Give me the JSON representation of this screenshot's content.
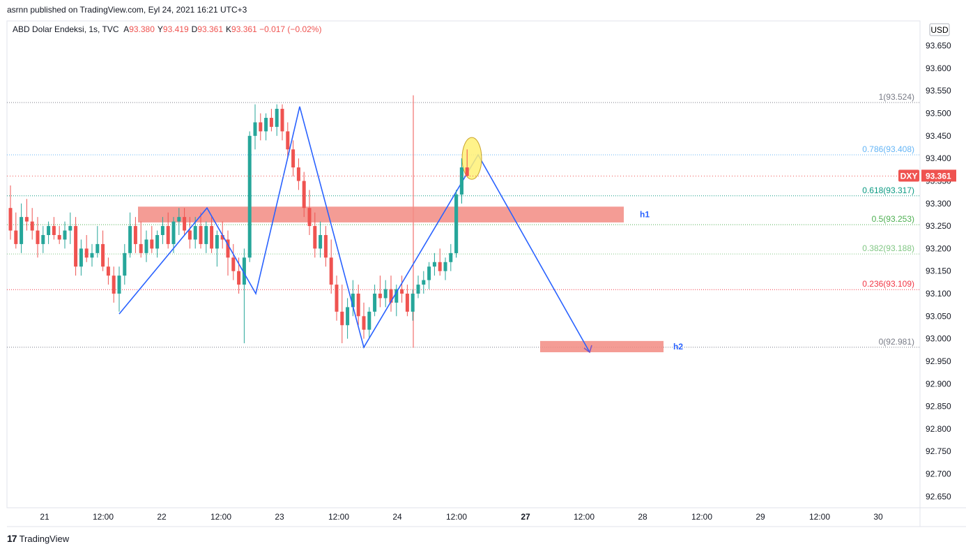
{
  "header": {
    "published": "asrnn published on TradingView.com, Eyl 24, 2021 16:21 UTC+3"
  },
  "legend": {
    "symbol_line": "ABD Dolar Endeksi, 1s, TVC",
    "o_label": "A",
    "o_value": "93.380",
    "h_label": "Y",
    "h_value": "93.419",
    "l_label": "D",
    "l_value": "93.361",
    "c_label": "K",
    "c_value": "93.361",
    "change": "−0.017 (−0.02%)"
  },
  "currency_button": "USD",
  "price_tag": {
    "symbol": "DXY",
    "value": "93.361"
  },
  "footer": {
    "logo": "17",
    "brand": "TradingView"
  },
  "colors": {
    "up": "#26a69a",
    "down": "#ef5350",
    "pattern": "#2962ff",
    "zone": "#f28b82",
    "highlight": "#fff176",
    "grid_text": "#131722"
  },
  "chart_data": {
    "type": "candlestick",
    "ylim": [
      92.625,
      93.705
    ],
    "y_ticks": [
      "93.650",
      "93.600",
      "93.550",
      "93.500",
      "93.450",
      "93.400",
      "93.350",
      "93.300",
      "93.250",
      "93.200",
      "93.150",
      "93.100",
      "93.050",
      "93.000",
      "92.950",
      "92.900",
      "92.850",
      "92.800",
      "92.750",
      "92.700",
      "92.650"
    ],
    "x_ticks": [
      "21",
      "12:00",
      "22",
      "12:00",
      "23",
      "12:00",
      "24",
      "12:00",
      "27",
      "12:00",
      "28",
      "12:00",
      "29",
      "12:00",
      "30"
    ],
    "x_tick_bold": [
      "27"
    ],
    "candles": [
      [
        93.29,
        93.34,
        93.22,
        93.24
      ],
      [
        93.24,
        93.28,
        93.2,
        93.21
      ],
      [
        93.21,
        93.3,
        93.19,
        93.27
      ],
      [
        93.27,
        93.31,
        93.24,
        93.26
      ],
      [
        93.26,
        93.29,
        93.22,
        93.24
      ],
      [
        93.24,
        93.27,
        93.18,
        93.21
      ],
      [
        93.21,
        93.25,
        93.19,
        93.23
      ],
      [
        93.23,
        93.26,
        93.21,
        93.25
      ],
      [
        93.25,
        93.27,
        93.22,
        93.23
      ],
      [
        93.23,
        93.25,
        93.21,
        93.22
      ],
      [
        93.22,
        93.26,
        93.2,
        93.24
      ],
      [
        93.24,
        93.28,
        93.21,
        93.25
      ],
      [
        93.25,
        93.27,
        93.14,
        93.16
      ],
      [
        93.16,
        93.22,
        93.14,
        93.2
      ],
      [
        93.2,
        93.23,
        93.17,
        93.18
      ],
      [
        93.18,
        93.21,
        93.16,
        93.19
      ],
      [
        93.19,
        93.25,
        93.18,
        93.21
      ],
      [
        93.21,
        93.24,
        93.15,
        93.16
      ],
      [
        93.16,
        93.18,
        93.12,
        93.14
      ],
      [
        93.14,
        93.16,
        93.08,
        93.1
      ],
      [
        93.1,
        93.16,
        93.06,
        93.14
      ],
      [
        93.14,
        93.21,
        93.12,
        93.19
      ],
      [
        93.19,
        93.28,
        93.18,
        93.25
      ],
      [
        93.25,
        93.27,
        93.19,
        93.21
      ],
      [
        93.21,
        93.26,
        93.18,
        93.19
      ],
      [
        93.19,
        93.24,
        93.17,
        93.22
      ],
      [
        93.22,
        93.25,
        93.19,
        93.2
      ],
      [
        93.2,
        93.24,
        93.18,
        93.23
      ],
      [
        93.23,
        93.27,
        93.21,
        93.25
      ],
      [
        93.25,
        93.28,
        93.2,
        93.21
      ],
      [
        93.21,
        93.27,
        93.19,
        93.26
      ],
      [
        93.26,
        93.29,
        93.23,
        93.27
      ],
      [
        93.27,
        93.29,
        93.23,
        93.24
      ],
      [
        93.24,
        93.27,
        93.2,
        93.22
      ],
      [
        93.22,
        93.27,
        93.2,
        93.25
      ],
      [
        93.25,
        93.28,
        93.2,
        93.21
      ],
      [
        93.21,
        93.26,
        93.19,
        93.25
      ],
      [
        93.25,
        93.27,
        93.19,
        93.2
      ],
      [
        93.2,
        93.24,
        93.16,
        93.23
      ],
      [
        93.23,
        93.26,
        93.2,
        93.22
      ],
      [
        93.22,
        93.24,
        93.14,
        93.18
      ],
      [
        93.18,
        93.21,
        93.13,
        93.15
      ],
      [
        93.15,
        93.18,
        93.1,
        93.12
      ],
      [
        93.12,
        93.2,
        92.99,
        93.18
      ],
      [
        93.18,
        93.46,
        93.17,
        93.45
      ],
      [
        93.45,
        93.52,
        93.42,
        93.48
      ],
      [
        93.48,
        93.5,
        93.44,
        93.46
      ],
      [
        93.46,
        93.5,
        93.44,
        93.49
      ],
      [
        93.49,
        93.51,
        93.46,
        93.47
      ],
      [
        93.47,
        93.52,
        93.45,
        93.51
      ],
      [
        93.51,
        93.52,
        93.44,
        93.46
      ],
      [
        93.46,
        93.48,
        93.4,
        93.42
      ],
      [
        93.42,
        93.44,
        93.36,
        93.38
      ],
      [
        93.38,
        93.4,
        93.33,
        93.35
      ],
      [
        93.35,
        93.37,
        93.27,
        93.29
      ],
      [
        93.29,
        93.33,
        93.23,
        93.25
      ],
      [
        93.25,
        93.28,
        93.18,
        93.2
      ],
      [
        93.2,
        93.26,
        93.18,
        93.23
      ],
      [
        93.23,
        93.25,
        93.16,
        93.18
      ],
      [
        93.18,
        93.22,
        93.1,
        93.12
      ],
      [
        93.12,
        93.14,
        93.04,
        93.06
      ],
      [
        93.06,
        93.12,
        92.99,
        93.03
      ],
      [
        93.03,
        93.09,
        93.0,
        93.07
      ],
      [
        93.07,
        93.13,
        93.05,
        93.1
      ],
      [
        93.1,
        93.12,
        93.03,
        93.05
      ],
      [
        93.05,
        93.08,
        93.0,
        93.02
      ],
      [
        93.02,
        93.07,
        93.0,
        93.06
      ],
      [
        93.06,
        93.12,
        93.05,
        93.1
      ],
      [
        93.1,
        93.14,
        93.07,
        93.09
      ],
      [
        93.09,
        93.13,
        93.07,
        93.11
      ],
      [
        93.11,
        93.14,
        93.06,
        93.08
      ],
      [
        93.08,
        93.12,
        93.05,
        93.11
      ],
      [
        93.11,
        93.14,
        93.08,
        93.1
      ],
      [
        93.1,
        93.12,
        93.05,
        93.06
      ],
      [
        93.06,
        93.11,
        93.04,
        93.1
      ],
      [
        93.1,
        93.14,
        93.09,
        93.12
      ],
      [
        93.12,
        93.15,
        93.1,
        93.13
      ],
      [
        93.13,
        93.17,
        93.11,
        93.16
      ],
      [
        93.16,
        93.19,
        93.14,
        93.17
      ],
      [
        93.17,
        93.2,
        93.14,
        93.15
      ],
      [
        93.15,
        93.18,
        93.13,
        93.17
      ],
      [
        93.17,
        93.21,
        93.15,
        93.19
      ],
      [
        93.19,
        93.33,
        93.18,
        93.32
      ],
      [
        93.32,
        93.4,
        93.3,
        93.38
      ],
      [
        93.38,
        93.42,
        93.36,
        93.361
      ]
    ],
    "fib_levels": [
      {
        "label": "1(93.524)",
        "value": 93.524,
        "color": "#787b86"
      },
      {
        "label": "0.786(93.408)",
        "value": 93.408,
        "color": "#64b5f6"
      },
      {
        "label": "0.618(93.317)",
        "value": 93.317,
        "color": "#089981"
      },
      {
        "label": "0.5(93.253)",
        "value": 93.253,
        "color": "#4caf50"
      },
      {
        "label": "0.382(93.188)",
        "value": 93.188,
        "color": "#81c784"
      },
      {
        "label": "0.236(93.109)",
        "value": 93.109,
        "color": "#f23645"
      },
      {
        "label": "0(92.981)",
        "value": 92.981,
        "color": "#787b86"
      }
    ],
    "zones": [
      {
        "label": "h1",
        "top": 93.293,
        "bottom": 93.258
      },
      {
        "label": "h2",
        "top": 92.995,
        "bottom": 92.97
      }
    ],
    "pattern_points": [
      [
        93.055,
        93.29,
        93.1,
        93.515,
        92.981,
        93.408,
        92.97
      ]
    ]
  }
}
